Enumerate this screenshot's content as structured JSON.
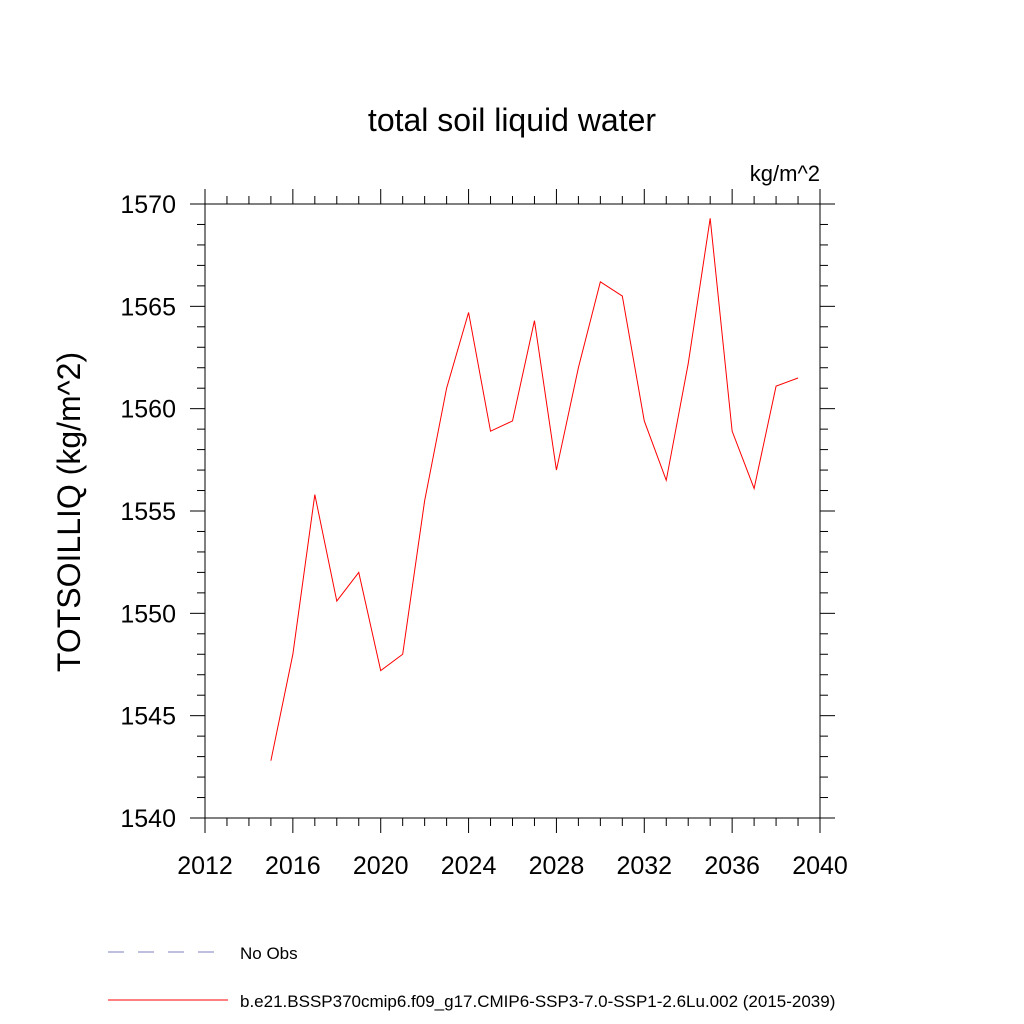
{
  "chart_data": {
    "type": "line",
    "title": "total soil liquid water",
    "units": "kg/m^2",
    "ylabel": "TOTSOILLIQ  (kg/m^2)",
    "xlabel": "",
    "xlim": [
      2012,
      2040
    ],
    "ylim": [
      1540,
      1570
    ],
    "x_ticks": [
      2012,
      2016,
      2020,
      2024,
      2028,
      2032,
      2036,
      2040
    ],
    "y_ticks": [
      1540,
      1545,
      1550,
      1555,
      1560,
      1565,
      1570
    ],
    "grid": false,
    "legend_position": "bottom-left",
    "series": [
      {
        "name": "b.e21.BSSP370cmip6.f09_g17.CMIP6-SSP3-7.0-SSP1-2.6Lu.002 (2015-2039)",
        "color": "#ff0000",
        "style": "solid",
        "x": [
          2015,
          2016,
          2017,
          2018,
          2019,
          2020,
          2021,
          2022,
          2023,
          2024,
          2025,
          2026,
          2027,
          2028,
          2029,
          2030,
          2031,
          2032,
          2033,
          2034,
          2035,
          2036,
          2037,
          2038,
          2039
        ],
        "values": [
          1542.8,
          1548.0,
          1555.8,
          1550.6,
          1552.0,
          1547.2,
          1548.0,
          1555.5,
          1561.0,
          1564.7,
          1558.9,
          1559.4,
          1564.3,
          1557.0,
          1562.0,
          1566.2,
          1565.5,
          1559.4,
          1556.5,
          1562.2,
          1569.3,
          1558.9,
          1556.1,
          1561.1,
          1561.5
        ]
      },
      {
        "name": "No Obs",
        "color": "#7f7fbf",
        "style": "dashed",
        "x": [],
        "values": []
      }
    ]
  }
}
